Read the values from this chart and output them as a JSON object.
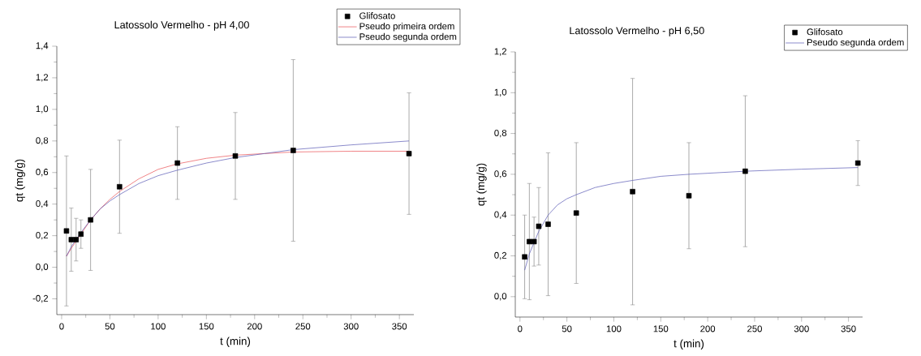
{
  "chart_data": [
    {
      "type": "scatter",
      "title": "Latossolo Vermelho - pH 4,00",
      "xlabel": "t (min)",
      "ylabel": "qt (mg/g)",
      "xlim": [
        -5,
        365
      ],
      "ylim": [
        -0.3,
        1.4
      ],
      "xticks": [
        0,
        50,
        100,
        150,
        200,
        250,
        300,
        350
      ],
      "yticks": [
        {
          "value": -0.2,
          "label": "-0,2"
        },
        {
          "value": 0,
          "label": "0,0"
        },
        {
          "value": 0.2,
          "label": "0,2"
        },
        {
          "value": 0.4,
          "label": "0,4"
        },
        {
          "value": 0.6,
          "label": "0,6"
        },
        {
          "value": 0.8,
          "label": "0,8"
        },
        {
          "value": 1.0,
          "label": "1,0"
        },
        {
          "value": 1.2,
          "label": "1,2"
        },
        {
          "value": 1.4,
          "label": "1,4"
        }
      ],
      "legend": "top right",
      "series": [
        {
          "name": "Glifosato",
          "marker": "square",
          "color": "#000000",
          "x": [
            5,
            10,
            15,
            20,
            30,
            60,
            120,
            180,
            240,
            360
          ],
          "values": [
            0.23,
            0.175,
            0.175,
            0.21,
            0.3,
            0.51,
            0.66,
            0.705,
            0.74,
            0.72
          ],
          "errors": [
            0.475,
            0.2,
            0.135,
            0.09,
            0.32,
            0.295,
            0.23,
            0.275,
            0.575,
            0.385
          ]
        },
        {
          "name": "Pseudo primeira ordem",
          "type": "line",
          "color": "#e8474c",
          "x": [
            5,
            10,
            20,
            30,
            40,
            50,
            60,
            80,
            100,
            120,
            150,
            180,
            210,
            240,
            300,
            360
          ],
          "values": [
            0.07,
            0.12,
            0.21,
            0.3,
            0.37,
            0.43,
            0.48,
            0.56,
            0.62,
            0.655,
            0.69,
            0.71,
            0.72,
            0.73,
            0.735,
            0.735
          ]
        },
        {
          "name": "Pseudo segunda ordem",
          "type": "line",
          "color": "#5050b0",
          "x": [
            5,
            10,
            20,
            30,
            40,
            50,
            60,
            80,
            100,
            120,
            150,
            180,
            210,
            240,
            300,
            360
          ],
          "values": [
            0.07,
            0.13,
            0.22,
            0.3,
            0.37,
            0.42,
            0.46,
            0.53,
            0.58,
            0.615,
            0.66,
            0.695,
            0.72,
            0.745,
            0.775,
            0.8
          ]
        }
      ]
    },
    {
      "type": "scatter",
      "title": "Latossolo Vermelho - pH 6,50",
      "xlabel": "t (min)",
      "ylabel": "qt (mg/g)",
      "xlim": [
        -5,
        365
      ],
      "ylim": [
        -0.1,
        1.2
      ],
      "xticks": [
        0,
        50,
        100,
        150,
        200,
        250,
        300,
        350
      ],
      "yticks": [
        {
          "value": 0,
          "label": "0,0"
        },
        {
          "value": 0.2,
          "label": "0,2"
        },
        {
          "value": 0.4,
          "label": "0,4"
        },
        {
          "value": 0.6,
          "label": "0,6"
        },
        {
          "value": 0.8,
          "label": "0,8"
        },
        {
          "value": 1.0,
          "label": "1,0"
        },
        {
          "value": 1.2,
          "label": "1,2"
        }
      ],
      "legend": "top right",
      "series": [
        {
          "name": "Glifosato",
          "marker": "square",
          "color": "#000000",
          "x": [
            5,
            10,
            15,
            20,
            30,
            60,
            120,
            180,
            240,
            360
          ],
          "values": [
            0.195,
            0.27,
            0.27,
            0.345,
            0.355,
            0.41,
            0.515,
            0.495,
            0.615,
            0.655
          ],
          "errors": [
            0.205,
            0.285,
            0.12,
            0.19,
            0.35,
            0.345,
            0.555,
            0.26,
            0.37,
            0.11
          ]
        },
        {
          "name": "Pseudo segunda ordem",
          "type": "line",
          "color": "#5050b0",
          "x": [
            5,
            10,
            20,
            30,
            40,
            50,
            60,
            80,
            100,
            120,
            150,
            180,
            240,
            300,
            360
          ],
          "values": [
            0.13,
            0.21,
            0.32,
            0.4,
            0.45,
            0.48,
            0.5,
            0.535,
            0.555,
            0.57,
            0.59,
            0.6,
            0.615,
            0.625,
            0.633
          ]
        }
      ]
    }
  ]
}
